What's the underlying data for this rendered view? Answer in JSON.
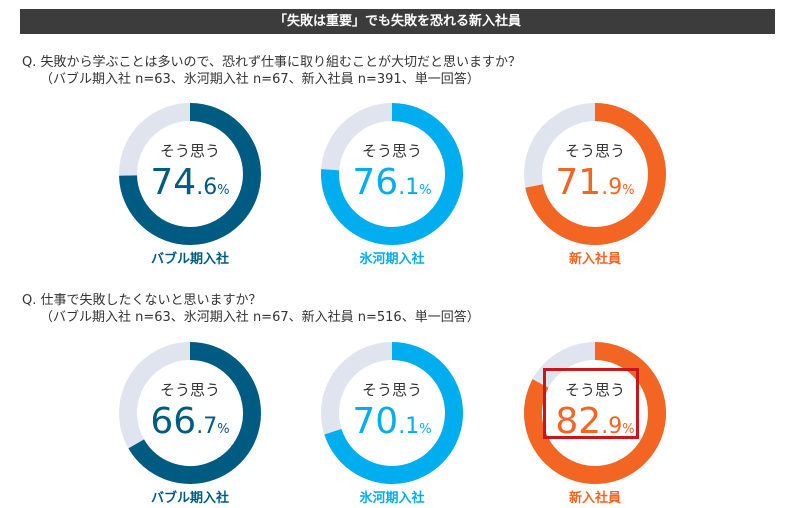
{
  "title": "「失敗は重要」でも失敗を恐れる新入社員",
  "questions": [
    {
      "q": "Q.  失敗から学ぶことは多いので、恐れず仕事に取り組むことが大切だと思いますか？",
      "sub": "（バブル期入社 n=63、氷河期入社 n=67、新入社員 n=391、単一回答）"
    },
    {
      "q": "Q.  仕事で失敗したくないと思いますか？",
      "sub": "（バブル期入社 n=63、氷河期入社 n=67、新入社員 n=516、単一回答）"
    }
  ],
  "chart_data": [
    {
      "type": "pie",
      "variant": "donut",
      "center_label": "そう思う",
      "unit": "%",
      "categories": [
        "バブル期入社",
        "氷河期入社",
        "新入社員"
      ],
      "values": [
        74.6,
        76.1,
        71.9
      ]
    },
    {
      "type": "pie",
      "variant": "donut",
      "center_label": "そう思う",
      "unit": "%",
      "categories": [
        "バブル期入社",
        "氷河期入社",
        "新入社員"
      ],
      "values": [
        66.7,
        70.1,
        82.9
      ],
      "highlight": "新入社員"
    }
  ],
  "colors": {
    "series": [
      "#005b82",
      "#00aeef",
      "#f26522"
    ],
    "track": "#dfe4ee",
    "highlight_box": "#c8161d"
  }
}
